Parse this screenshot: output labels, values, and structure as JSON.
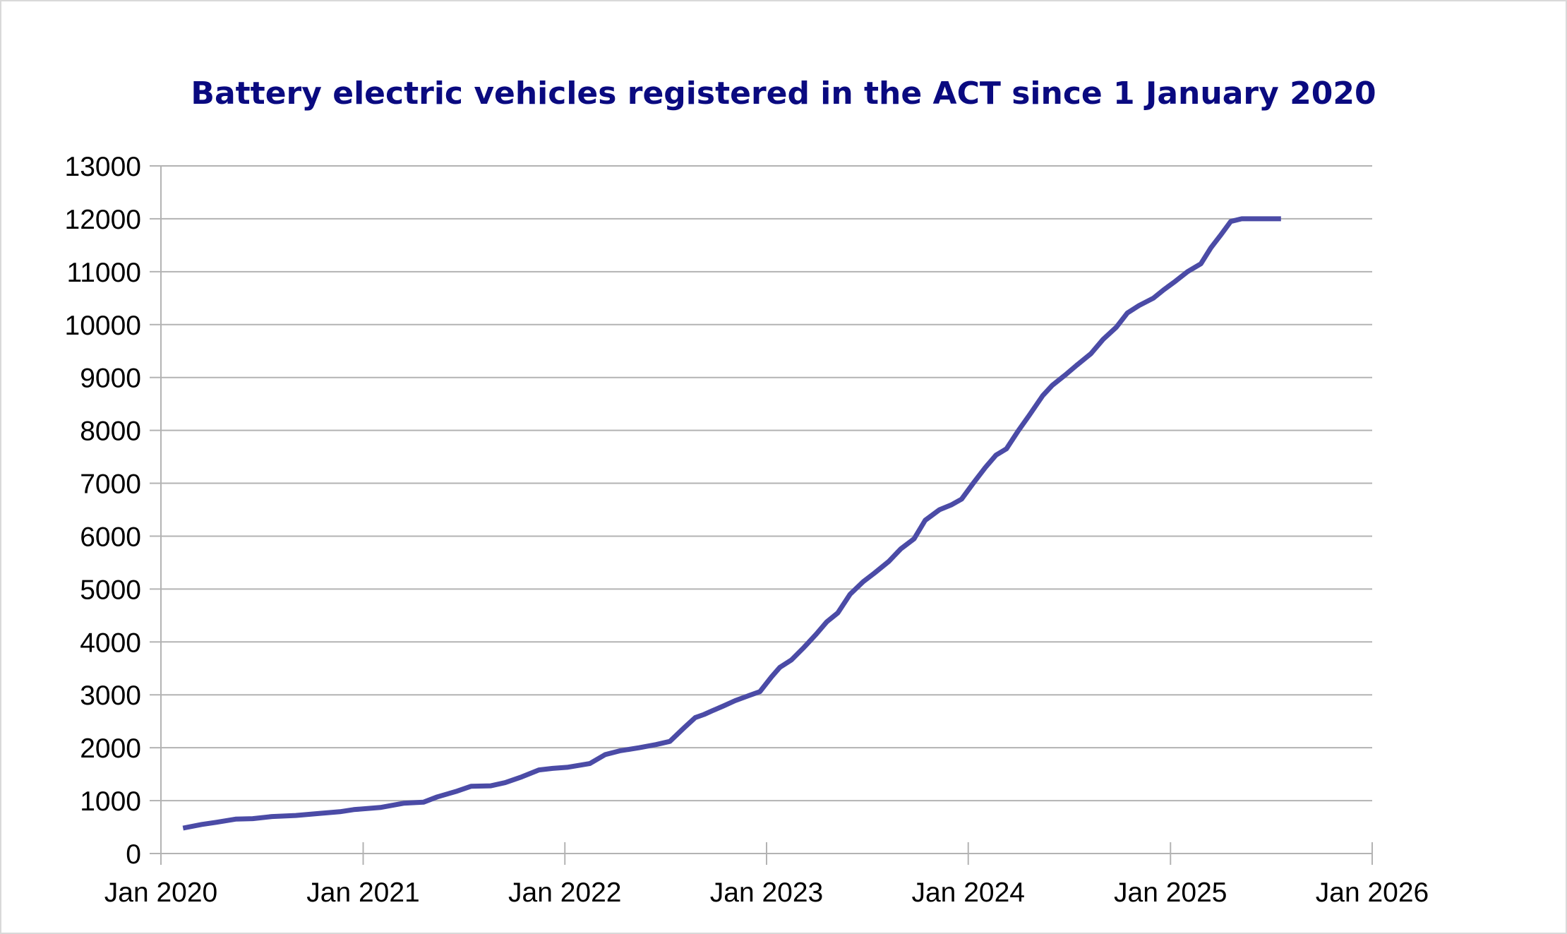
{
  "chart_data": {
    "type": "line",
    "title": "Battery electric vehicles registered in the ACT since 1 January 2020",
    "xlabel": "",
    "ylabel": "",
    "ylim": [
      0,
      13000
    ],
    "yticks": [
      0,
      1000,
      2000,
      3000,
      4000,
      5000,
      6000,
      7000,
      8000,
      9000,
      10000,
      11000,
      12000,
      13000
    ],
    "xlim": [
      "2020-01-01",
      "2026-01-01"
    ],
    "xticks": [
      {
        "date": "2020-01-01",
        "label": "Jan 2020"
      },
      {
        "date": "2021-01-01",
        "label": "Jan 2021"
      },
      {
        "date": "2022-01-01",
        "label": "Jan 2022"
      },
      {
        "date": "2023-01-01",
        "label": "Jan 2023"
      },
      {
        "date": "2024-01-01",
        "label": "Jan 2024"
      },
      {
        "date": "2025-01-01",
        "label": "Jan 2025"
      },
      {
        "date": "2026-01-01",
        "label": "Jan 2026"
      }
    ],
    "grid": "horizontal",
    "legend": "none",
    "line_color": "#4b4ba6",
    "series": [
      {
        "name": "",
        "x": [
          "2020-02-10",
          "2020-03-15",
          "2020-04-10",
          "2020-05-15",
          "2020-06-15",
          "2020-07-20",
          "2020-09-01",
          "2020-10-15",
          "2020-11-20",
          "2020-12-15",
          "2021-02-01",
          "2021-03-15",
          "2021-04-20",
          "2021-05-15",
          "2021-06-20",
          "2021-07-15",
          "2021-08-20",
          "2021-09-15",
          "2021-10-15",
          "2021-11-15",
          "2021-12-10",
          "2022-01-05",
          "2022-02-15",
          "2022-03-15",
          "2022-04-10",
          "2022-05-15",
          "2022-06-15",
          "2022-07-10",
          "2022-08-05",
          "2022-08-25",
          "2022-09-10",
          "2022-09-25",
          "2022-10-15",
          "2022-11-05",
          "2022-12-01",
          "2022-12-20",
          "2023-01-10",
          "2023-01-25",
          "2023-02-15",
          "2023-03-10",
          "2023-04-01",
          "2023-04-20",
          "2023-05-10",
          "2023-06-01",
          "2023-06-25",
          "2023-07-15",
          "2023-08-10",
          "2023-09-01",
          "2023-09-25",
          "2023-10-15",
          "2023-11-10",
          "2023-12-01",
          "2023-12-20",
          "2024-01-10",
          "2024-02-01",
          "2024-02-20",
          "2024-03-10",
          "2024-04-01",
          "2024-04-20",
          "2024-05-15",
          "2024-06-01",
          "2024-06-25",
          "2024-07-15",
          "2024-08-10",
          "2024-09-01",
          "2024-09-25",
          "2024-10-15",
          "2024-11-05",
          "2024-12-01",
          "2024-12-20",
          "2025-01-10",
          "2025-02-01",
          "2025-02-25",
          "2025-03-15",
          "2025-04-01",
          "2025-04-20",
          "2025-05-10",
          "2025-05-30",
          "2025-06-20",
          "2025-07-10",
          "2025-07-20"
        ],
        "values": [
          480,
          550,
          590,
          650,
          660,
          700,
          720,
          760,
          790,
          830,
          870,
          950,
          970,
          1070,
          1180,
          1270,
          1280,
          1340,
          1450,
          1580,
          1610,
          1630,
          1700,
          1870,
          1940,
          2000,
          2060,
          2120,
          2380,
          2570,
          2630,
          2700,
          2790,
          2890,
          2990,
          3060,
          3340,
          3520,
          3660,
          3900,
          4150,
          4380,
          4550,
          4900,
          5140,
          5300,
          5520,
          5760,
          5950,
          6300,
          6500,
          6590,
          6700,
          7000,
          7300,
          7530,
          7650,
          8000,
          8280,
          8660,
          8850,
          9050,
          9230,
          9450,
          9720,
          9950,
          10220,
          10360,
          10500,
          10660,
          10820,
          11000,
          11150,
          11450,
          11680,
          11950,
          12000,
          12000,
          12000,
          12000,
          12000
        ]
      }
    ]
  }
}
